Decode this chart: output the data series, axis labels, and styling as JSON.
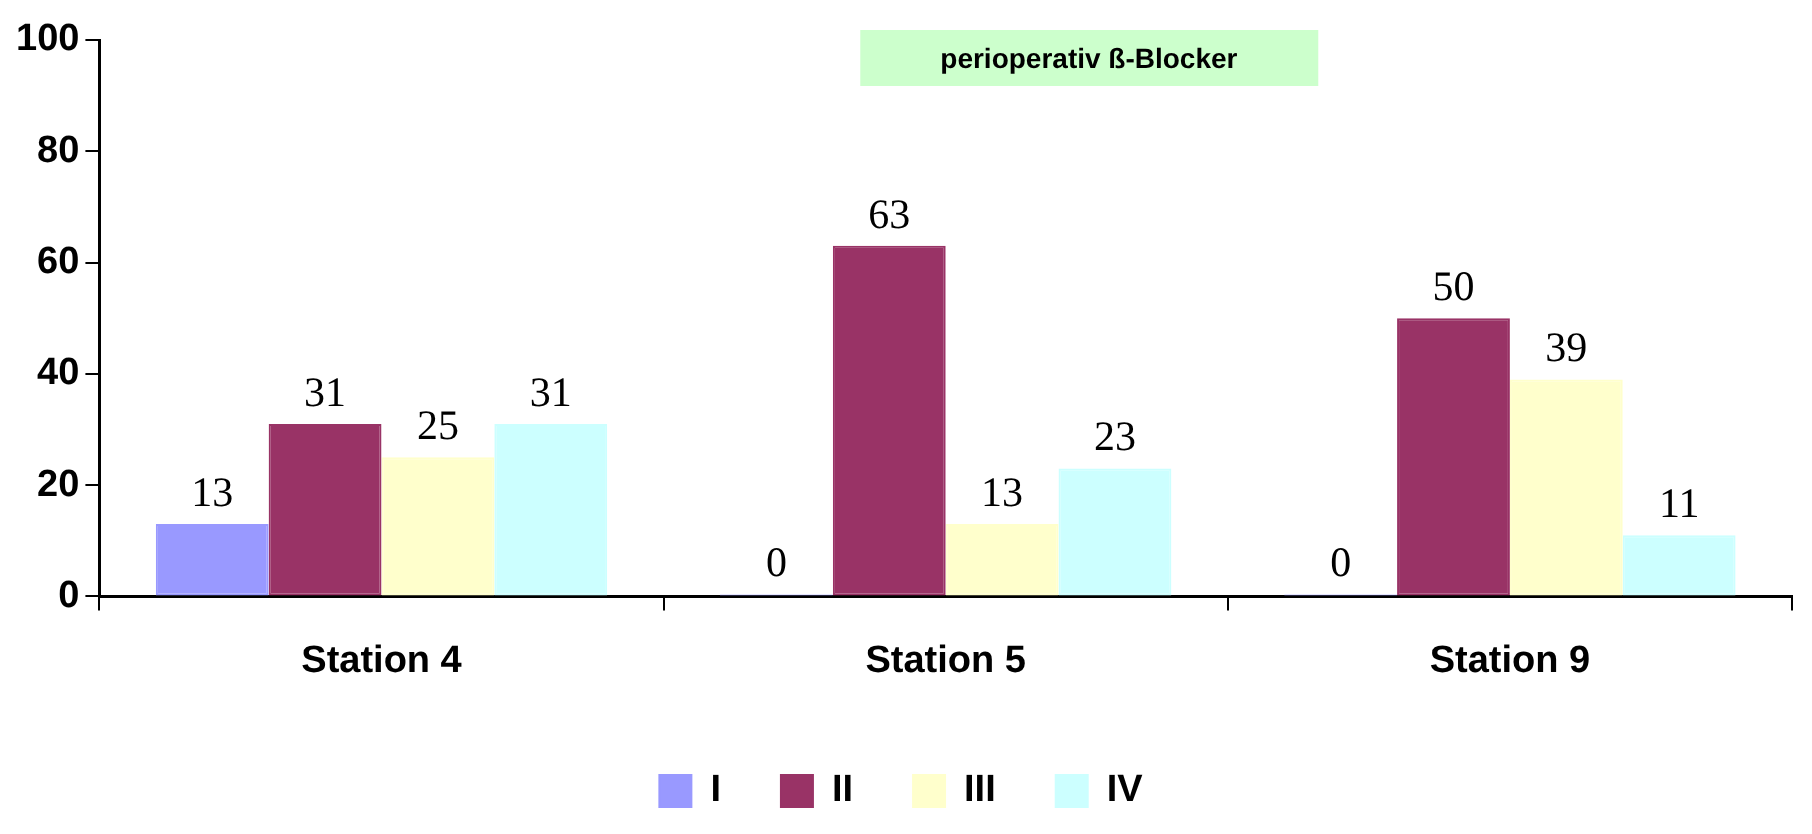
{
  "chart_data": {
    "type": "bar",
    "title": "perioperativ ß-Blocker",
    "categories": [
      "Station 4",
      "Station 5",
      "Station 9"
    ],
    "series": [
      {
        "name": "I",
        "color": "#9999ff",
        "values": [
          13,
          0,
          0
        ]
      },
      {
        "name": "II",
        "color": "#993366",
        "values": [
          31,
          63,
          50
        ]
      },
      {
        "name": "III",
        "color": "#ffffcc",
        "values": [
          25,
          13,
          39
        ]
      },
      {
        "name": "IV",
        "color": "#ccffff",
        "values": [
          31,
          23,
          11
        ]
      }
    ],
    "ylim": [
      0,
      100
    ],
    "yticks": [
      0,
      20,
      40,
      60,
      80,
      100
    ],
    "grid": false,
    "legend": "bottom",
    "data_labels": true
  }
}
